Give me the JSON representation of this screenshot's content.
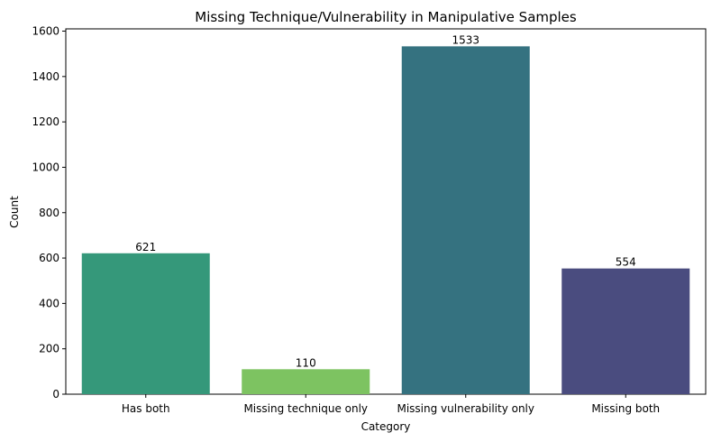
{
  "chart_data": {
    "type": "bar",
    "title": "Missing Technique/Vulnerability in Manipulative Samples",
    "xlabel": "Category",
    "ylabel": "Count",
    "categories": [
      "Has both",
      "Missing technique only",
      "Missing vulnerability only",
      "Missing both"
    ],
    "values": [
      621,
      110,
      1533,
      554
    ],
    "data_labels": [
      "621",
      "110",
      "1533",
      "554"
    ],
    "bar_colors": [
      "#35987a",
      "#7dc361",
      "#357280",
      "#4a4c7f"
    ],
    "ylim": [
      0,
      1610
    ],
    "yticks": [
      0,
      200,
      400,
      600,
      800,
      1000,
      1200,
      1400,
      1600
    ],
    "ytick_labels": [
      "0",
      "200",
      "400",
      "600",
      "800",
      "1000",
      "1200",
      "1400",
      "1600"
    ],
    "grid": false,
    "legend": "none"
  }
}
